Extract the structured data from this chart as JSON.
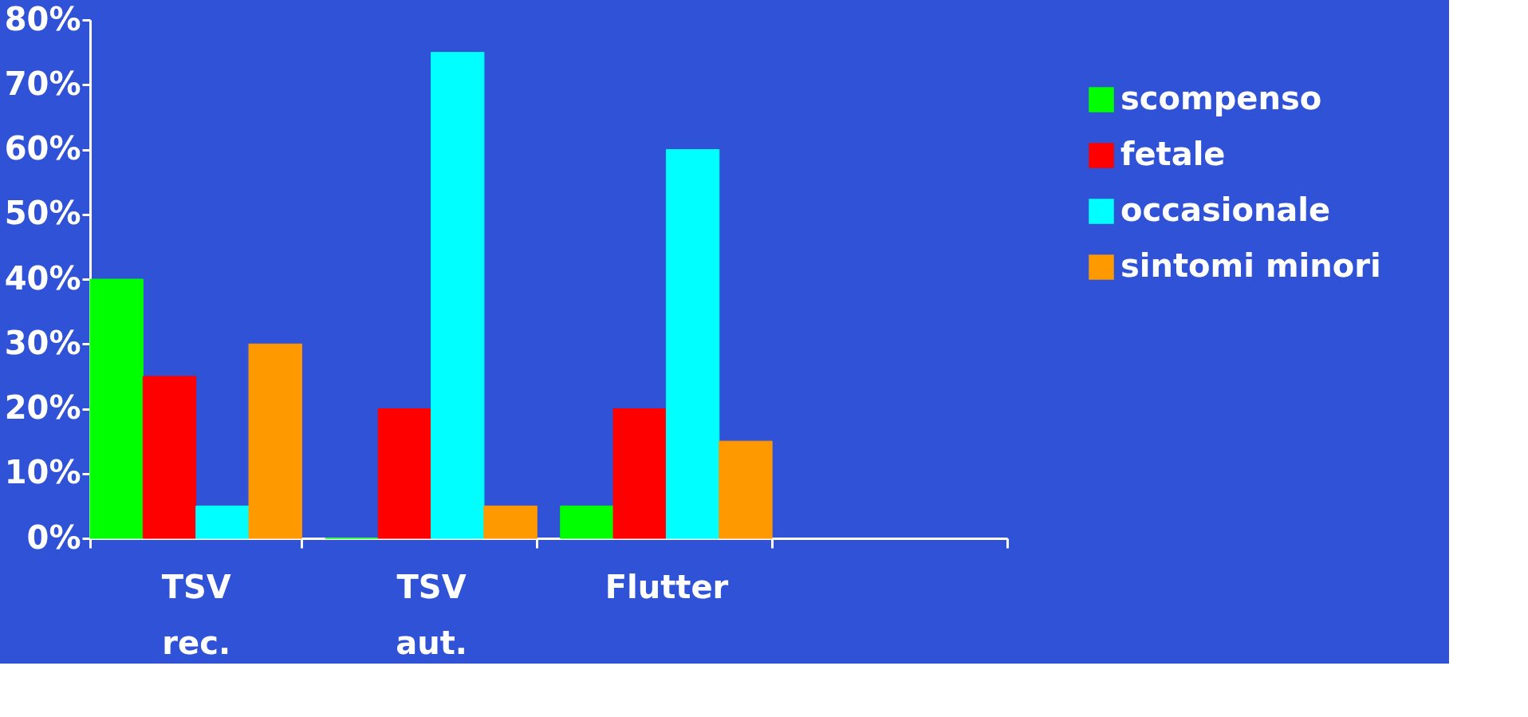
{
  "chart_data": {
    "type": "bar",
    "categories": [
      "TSV rec.",
      "TSV aut.",
      "Flutter",
      null
    ],
    "series": [
      {
        "name": "scompenso",
        "color": "#00ff00",
        "values": [
          40,
          0,
          5,
          null
        ]
      },
      {
        "name": "fetale",
        "color": "#ff0000",
        "values": [
          25,
          20,
          20,
          null
        ]
      },
      {
        "name": "occasionale",
        "color": "#00ffff",
        "values": [
          5,
          75,
          60,
          null
        ]
      },
      {
        "name": "sintomi minori",
        "color": "#ff9900",
        "values": [
          30,
          5,
          15,
          null
        ]
      }
    ],
    "ylim": [
      0,
      80
    ],
    "yticks": [
      {
        "value": 0,
        "label": "0%"
      },
      {
        "value": 10,
        "label": "10%"
      },
      {
        "value": 20,
        "label": "20%"
      },
      {
        "value": 30,
        "label": "30%"
      },
      {
        "value": 40,
        "label": "40%"
      },
      {
        "value": 50,
        "label": "50%"
      },
      {
        "value": 60,
        "label": "60%"
      },
      {
        "value": 70,
        "label": "70%"
      },
      {
        "value": 80,
        "label": "80%"
      }
    ],
    "grid": false,
    "legend": "right"
  }
}
